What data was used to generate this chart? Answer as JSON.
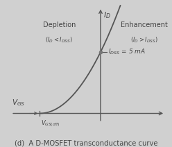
{
  "background_color": "#d0d0d0",
  "curve_color": "#555555",
  "axis_color": "#555555",
  "text_color": "#444444",
  "dot_color": "#555555",
  "title": "(d)  A D-MOSFET transconductance curve",
  "title_fontsize": 7.2,
  "xmin": -4.0,
  "xmax": 2.8,
  "ymin": -2.5,
  "ymax": 9.0,
  "vgsoff_x": -2.5,
  "idss_y": 5.0,
  "font_size_main": 7.5,
  "font_size_small": 6.5,
  "y_axis_x": 0.0,
  "x_axis_y": 0.0
}
